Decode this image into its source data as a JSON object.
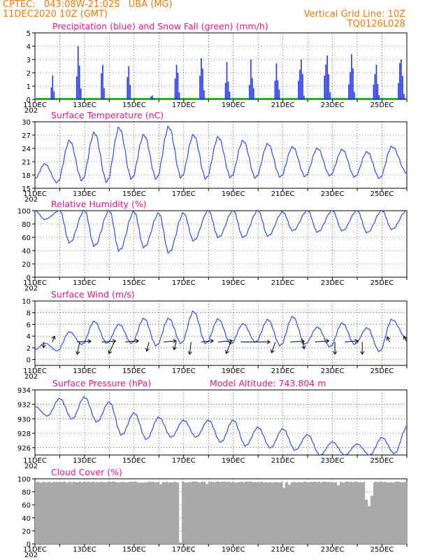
{
  "header": {
    "line1": "CPTEC:   043:08W-21:02S   UBA (MG)",
    "line2": "11DEC2020 10Z (GMT)",
    "grid_note": "Vertical Grid Line: 10Z",
    "run_id": "TQ0126L028"
  },
  "colors": {
    "header_text": "#f07a10",
    "panel_title": "#e8168c",
    "precipitation": "#2233ee",
    "snowfall": "#22aa22",
    "line": "#2a4ef0",
    "wind_arrow": "#000000",
    "cloud": "#a9a9a9"
  },
  "x_axis": {
    "tick_labels": [
      "11DEC",
      "13DEC",
      "15DEC",
      "17DEC",
      "19DEC",
      "21DEC",
      "23DEC",
      "25DEC"
    ],
    "start_time": "11DEC2020 10Z",
    "end_time": "26DEC2020 10Z",
    "tick_times": [
      0,
      2,
      4,
      6,
      8,
      10,
      12,
      14
    ],
    "cut_label": "202"
  },
  "chart_data": [
    {
      "type": "bar",
      "title": "Precipitation (blue) and Snow Fall (green) (mm/h)",
      "xlabel": "",
      "ylabel": "",
      "ylim": [
        0,
        5
      ],
      "yticks": [
        0,
        1,
        2,
        3,
        4,
        5
      ],
      "grid": true,
      "series": [
        {
          "name": "Precipitation",
          "events": [
            {
              "day": 0.68,
              "width": 0.2,
              "peak": 1.8
            },
            {
              "day": 1.73,
              "width": 0.25,
              "peak": 4.0
            },
            {
              "day": 2.7,
              "width": 0.2,
              "peak": 2.6
            },
            {
              "day": 3.75,
              "width": 0.2,
              "peak": 2.5
            },
            {
              "day": 4.7,
              "width": 0.2,
              "peak": 0.3
            },
            {
              "day": 5.7,
              "width": 0.25,
              "peak": 2.6
            },
            {
              "day": 6.7,
              "width": 0.25,
              "peak": 3.1
            },
            {
              "day": 7.73,
              "width": 0.25,
              "peak": 2.8
            },
            {
              "day": 8.7,
              "width": 0.25,
              "peak": 3.0
            },
            {
              "day": 9.73,
              "width": 0.25,
              "peak": 2.7
            },
            {
              "day": 10.7,
              "width": 0.3,
              "peak": 3.0
            },
            {
              "day": 11.75,
              "width": 0.3,
              "peak": 3.3
            },
            {
              "day": 12.73,
              "width": 0.3,
              "peak": 3.4
            },
            {
              "day": 13.73,
              "width": 0.3,
              "peak": 2.6
            },
            {
              "day": 14.73,
              "width": 0.3,
              "peak": 3.0
            }
          ]
        },
        {
          "name": "Snow Fall",
          "constant": 0
        }
      ]
    },
    {
      "type": "line",
      "title": "Surface Temperature (nC)",
      "xlabel": "",
      "ylabel": "",
      "ylim": [
        15,
        30
      ],
      "yticks": [
        15,
        18,
        21,
        24,
        27,
        30
      ],
      "grid": true,
      "series": [
        {
          "name": "Surface Temperature",
          "minima": [
            {
              "day": 0.0,
              "value": 17.2
            },
            {
              "day": 0.9,
              "value": 16.3
            },
            {
              "day": 1.9,
              "value": 16.8
            },
            {
              "day": 2.9,
              "value": 16.5
            },
            {
              "day": 3.9,
              "value": 17.2
            },
            {
              "day": 4.9,
              "value": 17.2
            },
            {
              "day": 5.9,
              "value": 17.5
            },
            {
              "day": 6.9,
              "value": 17.2
            },
            {
              "day": 7.9,
              "value": 17.5
            },
            {
              "day": 8.9,
              "value": 17.4
            },
            {
              "day": 9.9,
              "value": 17.6
            },
            {
              "day": 10.9,
              "value": 17.7
            },
            {
              "day": 11.9,
              "value": 17.9
            },
            {
              "day": 12.9,
              "value": 17.6
            },
            {
              "day": 13.9,
              "value": 17.3
            },
            {
              "day": 15.0,
              "value": 18.5
            }
          ],
          "maxima": [
            {
              "day": 0.4,
              "value": 20.5
            },
            {
              "day": 1.4,
              "value": 25.7
            },
            {
              "day": 2.4,
              "value": 27.5
            },
            {
              "day": 3.4,
              "value": 28.6
            },
            {
              "day": 4.4,
              "value": 27.0
            },
            {
              "day": 5.4,
              "value": 28.8
            },
            {
              "day": 6.4,
              "value": 27.0
            },
            {
              "day": 7.4,
              "value": 26.5
            },
            {
              "day": 8.4,
              "value": 25.7
            },
            {
              "day": 9.4,
              "value": 25.0
            },
            {
              "day": 10.4,
              "value": 24.3
            },
            {
              "day": 11.4,
              "value": 24.0
            },
            {
              "day": 12.4,
              "value": 23.7
            },
            {
              "day": 13.4,
              "value": 23.2
            },
            {
              "day": 14.4,
              "value": 24.4
            }
          ]
        }
      ]
    },
    {
      "type": "line",
      "title": "Relative Humidity (%)",
      "xlabel": "",
      "ylabel": "",
      "ylim": [
        0,
        100
      ],
      "yticks": [
        0,
        20,
        40,
        60,
        80,
        100
      ],
      "grid": true,
      "series": [
        {
          "name": "Relative Humidity",
          "maxima": [
            {
              "day": 0.0,
              "value": 100
            },
            {
              "day": 1.0,
              "value": 100
            },
            {
              "day": 2.0,
              "value": 100
            },
            {
              "day": 3.0,
              "value": 100
            },
            {
              "day": 4.0,
              "value": 98
            },
            {
              "day": 5.0,
              "value": 96
            },
            {
              "day": 6.0,
              "value": 96
            },
            {
              "day": 7.0,
              "value": 100
            },
            {
              "day": 8.0,
              "value": 100
            },
            {
              "day": 9.0,
              "value": 100
            },
            {
              "day": 10.0,
              "value": 98
            },
            {
              "day": 11.0,
              "value": 100
            },
            {
              "day": 12.0,
              "value": 100
            },
            {
              "day": 13.0,
              "value": 100
            },
            {
              "day": 14.0,
              "value": 100
            },
            {
              "day": 15.0,
              "value": 100
            }
          ],
          "minima": [
            {
              "day": 0.4,
              "value": 87
            },
            {
              "day": 1.4,
              "value": 52
            },
            {
              "day": 2.4,
              "value": 47
            },
            {
              "day": 3.4,
              "value": 40
            },
            {
              "day": 4.4,
              "value": 45
            },
            {
              "day": 5.4,
              "value": 37
            },
            {
              "day": 6.4,
              "value": 55
            },
            {
              "day": 7.4,
              "value": 60
            },
            {
              "day": 8.4,
              "value": 60
            },
            {
              "day": 9.4,
              "value": 62
            },
            {
              "day": 10.4,
              "value": 70
            },
            {
              "day": 11.4,
              "value": 68
            },
            {
              "day": 12.4,
              "value": 70
            },
            {
              "day": 13.4,
              "value": 67
            },
            {
              "day": 14.4,
              "value": 72
            }
          ]
        }
      ]
    },
    {
      "type": "line",
      "title": "Surface Wind (m/s)",
      "xlabel": "",
      "ylabel": "",
      "ylim": [
        -1,
        10
      ],
      "yticks": [
        0,
        2,
        4,
        6,
        8,
        10
      ],
      "grid": true,
      "series": [
        {
          "name": "Wind Speed",
          "minima": [
            {
              "day": 0.0,
              "value": 1.7
            },
            {
              "day": 0.9,
              "value": 1.5
            },
            {
              "day": 1.9,
              "value": 2.6
            },
            {
              "day": 2.9,
              "value": 2.8
            },
            {
              "day": 3.9,
              "value": 2.8
            },
            {
              "day": 4.9,
              "value": 2.4
            },
            {
              "day": 5.9,
              "value": 2.8
            },
            {
              "day": 6.9,
              "value": 2.8
            },
            {
              "day": 7.9,
              "value": 2.7
            },
            {
              "day": 8.9,
              "value": 3.0
            },
            {
              "day": 9.9,
              "value": 2.4
            },
            {
              "day": 10.9,
              "value": 2.7
            },
            {
              "day": 11.9,
              "value": 2.2
            },
            {
              "day": 12.9,
              "value": 2.6
            },
            {
              "day": 13.9,
              "value": 1.4
            },
            {
              "day": 15.0,
              "value": 3.6
            }
          ],
          "maxima": [
            {
              "day": 0.4,
              "value": 2.8
            },
            {
              "day": 1.4,
              "value": 4.7
            },
            {
              "day": 2.4,
              "value": 6.5
            },
            {
              "day": 3.4,
              "value": 6.0
            },
            {
              "day": 4.4,
              "value": 7.0
            },
            {
              "day": 5.4,
              "value": 7.0
            },
            {
              "day": 6.4,
              "value": 8.2
            },
            {
              "day": 7.4,
              "value": 6.9
            },
            {
              "day": 8.4,
              "value": 6.1
            },
            {
              "day": 9.4,
              "value": 6.8
            },
            {
              "day": 10.4,
              "value": 7.3
            },
            {
              "day": 11.4,
              "value": 5.5
            },
            {
              "day": 12.4,
              "value": 6.2
            },
            {
              "day": 13.4,
              "value": 5.4
            },
            {
              "day": 14.4,
              "value": 6.8
            }
          ]
        }
      ],
      "wind_vectors": [
        {
          "day": 0.35,
          "u": 0,
          "v": -1.5
        },
        {
          "day": 0.7,
          "u": 0.3,
          "v": 1.5
        },
        {
          "day": 1.7,
          "u": 1.8,
          "v": 0.2
        },
        {
          "day": 1.8,
          "u": -0.3,
          "v": -3.2
        },
        {
          "day": 2.7,
          "u": 1.8,
          "v": 0.2
        },
        {
          "day": 3.2,
          "u": -0.7,
          "v": -3.0
        },
        {
          "day": 3.65,
          "u": 1.7,
          "v": 0.3
        },
        {
          "day": 4.6,
          "u": -0.3,
          "v": -2.4
        },
        {
          "day": 5.2,
          "u": 1.6,
          "v": 0.3
        },
        {
          "day": 5.7,
          "u": -0.3,
          "v": -2.0
        },
        {
          "day": 6.3,
          "u": -0.2,
          "v": -3.2
        },
        {
          "day": 6.7,
          "u": 1.6,
          "v": 0.3
        },
        {
          "day": 7.4,
          "u": 1.8,
          "v": 0.3
        },
        {
          "day": 7.9,
          "u": -0.6,
          "v": -3.0
        },
        {
          "day": 8.3,
          "u": 3.8,
          "v": 0
        },
        {
          "day": 9.7,
          "u": -0.5,
          "v": -2.8
        },
        {
          "day": 10.3,
          "u": 1.8,
          "v": 0.2
        },
        {
          "day": 10.8,
          "u": 0.2,
          "v": -1.8
        },
        {
          "day": 11.3,
          "u": 1.8,
          "v": 0.3
        },
        {
          "day": 12.1,
          "u": 0,
          "v": -3.2
        },
        {
          "day": 12.5,
          "u": 1.7,
          "v": 0.3
        },
        {
          "day": 13.2,
          "u": 0,
          "v": -3.2
        },
        {
          "day": 14.3,
          "u": -0.3,
          "v": 1.3
        },
        {
          "day": 15.0,
          "u": -0.4,
          "v": 1.5
        }
      ]
    },
    {
      "type": "line",
      "title": "Surface Pressure (hPa)",
      "annotation": "Model Altitude: 743.804  m",
      "xlabel": "",
      "ylabel": "",
      "ylim": [
        925,
        934
      ],
      "yticks": [
        926,
        928,
        930,
        932,
        934
      ],
      "grid": true,
      "series": [
        {
          "name": "Surface Pressure",
          "maxima": [
            {
              "day": 0.0,
              "value": 931.7
            },
            {
              "day": 1.0,
              "value": 932.8
            },
            {
              "day": 2.0,
              "value": 933.0
            },
            {
              "day": 3.0,
              "value": 932.3
            },
            {
              "day": 4.0,
              "value": 930.8
            },
            {
              "day": 5.0,
              "value": 930.2
            },
            {
              "day": 6.0,
              "value": 929.8
            },
            {
              "day": 7.0,
              "value": 929.8
            },
            {
              "day": 8.0,
              "value": 929.8
            },
            {
              "day": 9.0,
              "value": 928.8
            },
            {
              "day": 10.0,
              "value": 928.6
            },
            {
              "day": 11.0,
              "value": 927.8
            },
            {
              "day": 12.0,
              "value": 926.8
            },
            {
              "day": 13.0,
              "value": 926.5
            },
            {
              "day": 14.0,
              "value": 927.4
            },
            {
              "day": 15.0,
              "value": 928.8
            }
          ],
          "minima": [
            {
              "day": 0.5,
              "value": 930.4
            },
            {
              "day": 1.5,
              "value": 930.0
            },
            {
              "day": 2.5,
              "value": 929.6
            },
            {
              "day": 3.5,
              "value": 927.8
            },
            {
              "day": 4.5,
              "value": 927.2
            },
            {
              "day": 5.5,
              "value": 927.5
            },
            {
              "day": 6.5,
              "value": 927.5
            },
            {
              "day": 7.5,
              "value": 926.8
            },
            {
              "day": 8.5,
              "value": 926.3
            },
            {
              "day": 9.5,
              "value": 926.0
            },
            {
              "day": 10.5,
              "value": 925.7
            },
            {
              "day": 11.5,
              "value": 925.0
            },
            {
              "day": 12.5,
              "value": 925.0
            },
            {
              "day": 13.5,
              "value": 925.0
            },
            {
              "day": 14.5,
              "value": 925.2
            }
          ]
        }
      ]
    },
    {
      "type": "area",
      "title": "Cloud Cover (%)",
      "xlabel": "",
      "ylabel": "",
      "ylim": [
        0,
        100
      ],
      "yticks": [
        0,
        20,
        40,
        60,
        80,
        100
      ],
      "grid": true,
      "series": [
        {
          "name": "Cloud Cover",
          "baseline": 96,
          "dips": [
            {
              "day": 5.85,
              "value": 2
            },
            {
              "day": 0.2,
              "value": 94
            },
            {
              "day": 5.05,
              "value": 92
            },
            {
              "day": 6.9,
              "value": 92
            },
            {
              "day": 10.0,
              "value": 86
            },
            {
              "day": 10.25,
              "value": 91
            },
            {
              "day": 12.2,
              "value": 90
            },
            {
              "day": 13.35,
              "value": 68
            },
            {
              "day": 13.45,
              "value": 58
            },
            {
              "day": 13.55,
              "value": 74
            }
          ]
        }
      ]
    }
  ]
}
